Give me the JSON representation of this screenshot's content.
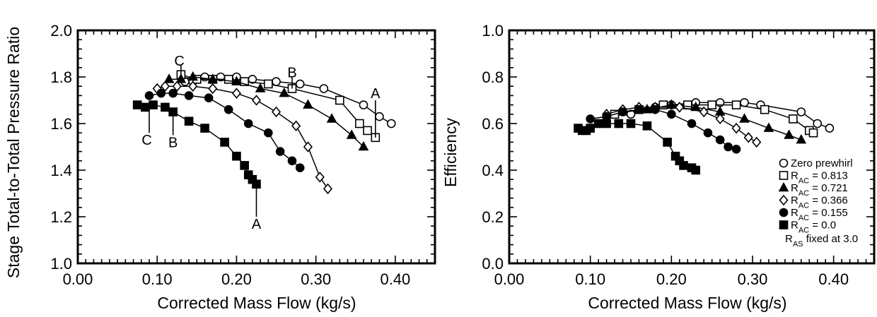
{
  "chart_data": [
    {
      "type": "line",
      "xlabel": "Corrected Mass Flow (kg/s)",
      "ylabel": "Stage Total-to-Total Pressure Ratio",
      "xlim": [
        0.0,
        0.45
      ],
      "ylim": [
        1.0,
        2.0
      ],
      "xticks": [
        "0.00",
        "0.10",
        "0.20",
        "0.30",
        "0.40"
      ],
      "yticks": [
        "1.0",
        "1.2",
        "1.4",
        "1.6",
        "1.8",
        "2.0"
      ],
      "grid": false,
      "series": [
        {
          "name": "Zero prewhirl",
          "marker": "circle-open",
          "x": [
            0.135,
            0.145,
            0.16,
            0.18,
            0.2,
            0.22,
            0.25,
            0.28,
            0.31,
            0.36,
            0.38,
            0.395
          ],
          "y": [
            1.78,
            1.78,
            1.8,
            1.8,
            1.8,
            1.79,
            1.78,
            1.77,
            1.75,
            1.68,
            1.63,
            1.6
          ]
        },
        {
          "name": "R_AC = 0.813",
          "marker": "square-open",
          "x": [
            0.13,
            0.15,
            0.17,
            0.19,
            0.21,
            0.24,
            0.27,
            0.33,
            0.355,
            0.365,
            0.375
          ],
          "y": [
            1.81,
            1.79,
            1.79,
            1.79,
            1.78,
            1.77,
            1.75,
            1.7,
            1.6,
            1.57,
            1.54
          ]
        },
        {
          "name": "R_AC = 0.721",
          "marker": "triangle-filled",
          "x": [
            0.115,
            0.13,
            0.145,
            0.17,
            0.2,
            0.23,
            0.26,
            0.29,
            0.32,
            0.345,
            0.36
          ],
          "y": [
            1.79,
            1.79,
            1.8,
            1.79,
            1.78,
            1.75,
            1.73,
            1.68,
            1.62,
            1.55,
            1.5
          ]
        },
        {
          "name": "R_AC = 0.366",
          "marker": "diamond-open",
          "x": [
            0.1,
            0.11,
            0.125,
            0.145,
            0.17,
            0.2,
            0.225,
            0.25,
            0.275,
            0.29,
            0.305,
            0.315
          ],
          "y": [
            1.75,
            1.76,
            1.76,
            1.76,
            1.75,
            1.73,
            1.7,
            1.65,
            1.59,
            1.5,
            1.37,
            1.32
          ]
        },
        {
          "name": "R_AC = 0.155",
          "marker": "circle-filled",
          "x": [
            0.09,
            0.105,
            0.12,
            0.14,
            0.165,
            0.19,
            0.215,
            0.24,
            0.255,
            0.27,
            0.28
          ],
          "y": [
            1.72,
            1.73,
            1.73,
            1.72,
            1.71,
            1.66,
            1.6,
            1.56,
            1.48,
            1.44,
            1.41
          ]
        },
        {
          "name": "R_AC = 0.0",
          "marker": "square-filled",
          "x": [
            0.075,
            0.085,
            0.095,
            0.11,
            0.12,
            0.14,
            0.16,
            0.185,
            0.2,
            0.21,
            0.215,
            0.22,
            0.225
          ],
          "y": [
            1.68,
            1.67,
            1.68,
            1.67,
            1.65,
            1.61,
            1.58,
            1.52,
            1.46,
            1.42,
            1.38,
            1.36,
            1.34
          ]
        }
      ],
      "annotations": [
        {
          "text": "C",
          "x": 0.128,
          "y": 1.87,
          "line_to": [
            0.13,
            1.81
          ],
          "line_from": [
            0.13,
            1.85
          ]
        },
        {
          "text": "B",
          "x": 0.27,
          "y": 1.82,
          "line_to": [
            0.27,
            1.75
          ],
          "line_from": [
            0.27,
            1.8
          ]
        },
        {
          "text": "A",
          "x": 0.375,
          "y": 1.73,
          "line_to": [
            0.375,
            1.54
          ],
          "line_from": [
            0.375,
            1.7
          ]
        },
        {
          "text": "C",
          "x": 0.087,
          "y": 1.53,
          "line_to": [
            0.09,
            1.68
          ],
          "line_from": [
            0.09,
            1.56
          ]
        },
        {
          "text": "B",
          "x": 0.12,
          "y": 1.52,
          "line_to": [
            0.12,
            1.65
          ],
          "line_from": [
            0.12,
            1.55
          ]
        },
        {
          "text": "A",
          "x": 0.225,
          "y": 1.17,
          "line_to": [
            0.225,
            1.34
          ],
          "line_from": [
            0.225,
            1.2
          ]
        }
      ]
    },
    {
      "type": "line",
      "xlabel": "Corrected Mass Flow (kg/s)",
      "ylabel": "Efficiency",
      "xlim": [
        0.0,
        0.45
      ],
      "ylim": [
        0.0,
        1.0
      ],
      "xticks": [
        "0.00",
        "0.10",
        "0.20",
        "0.30",
        "0.40"
      ],
      "yticks": [
        "0.0",
        "0.2",
        "0.4",
        "0.6",
        "0.8",
        "1.0"
      ],
      "grid": false,
      "legend_position": "bottom-right",
      "legend_note": "R_AS fixed at 3.0",
      "series": [
        {
          "name": "Zero prewhirl",
          "marker": "circle-open",
          "x": [
            0.15,
            0.18,
            0.2,
            0.23,
            0.26,
            0.29,
            0.31,
            0.36,
            0.38,
            0.395
          ],
          "y": [
            0.64,
            0.67,
            0.68,
            0.69,
            0.69,
            0.69,
            0.68,
            0.65,
            0.6,
            0.58
          ]
        },
        {
          "name": "R_AC = 0.813",
          "marker": "square-open",
          "x": [
            0.13,
            0.16,
            0.19,
            0.22,
            0.25,
            0.28,
            0.315,
            0.35,
            0.37,
            0.375
          ],
          "y": [
            0.64,
            0.66,
            0.68,
            0.68,
            0.68,
            0.68,
            0.66,
            0.62,
            0.57,
            0.56
          ]
        },
        {
          "name": "R_AC = 0.721",
          "marker": "triangle-filled",
          "x": [
            0.14,
            0.17,
            0.2,
            0.23,
            0.26,
            0.29,
            0.32,
            0.345,
            0.36
          ],
          "y": [
            0.65,
            0.66,
            0.68,
            0.67,
            0.65,
            0.62,
            0.58,
            0.55,
            0.53
          ]
        },
        {
          "name": "R_AC = 0.366",
          "marker": "diamond-open",
          "x": [
            0.12,
            0.14,
            0.16,
            0.18,
            0.21,
            0.24,
            0.26,
            0.28,
            0.295,
            0.305
          ],
          "y": [
            0.64,
            0.66,
            0.67,
            0.67,
            0.67,
            0.65,
            0.62,
            0.58,
            0.54,
            0.52
          ]
        },
        {
          "name": "R_AC = 0.155",
          "marker": "circle-filled",
          "x": [
            0.1,
            0.12,
            0.14,
            0.16,
            0.18,
            0.2,
            0.225,
            0.245,
            0.26,
            0.27,
            0.28
          ],
          "y": [
            0.62,
            0.63,
            0.65,
            0.66,
            0.66,
            0.64,
            0.6,
            0.56,
            0.53,
            0.5,
            0.49
          ]
        },
        {
          "name": "R_AC = 0.0",
          "marker": "square-filled",
          "x": [
            0.085,
            0.09,
            0.095,
            0.1,
            0.11,
            0.12,
            0.135,
            0.15,
            0.17,
            0.195,
            0.205,
            0.21,
            0.215,
            0.225,
            0.23
          ],
          "y": [
            0.58,
            0.57,
            0.57,
            0.58,
            0.6,
            0.6,
            0.6,
            0.6,
            0.59,
            0.52,
            0.46,
            0.44,
            0.42,
            0.41,
            0.4
          ]
        }
      ]
    }
  ]
}
